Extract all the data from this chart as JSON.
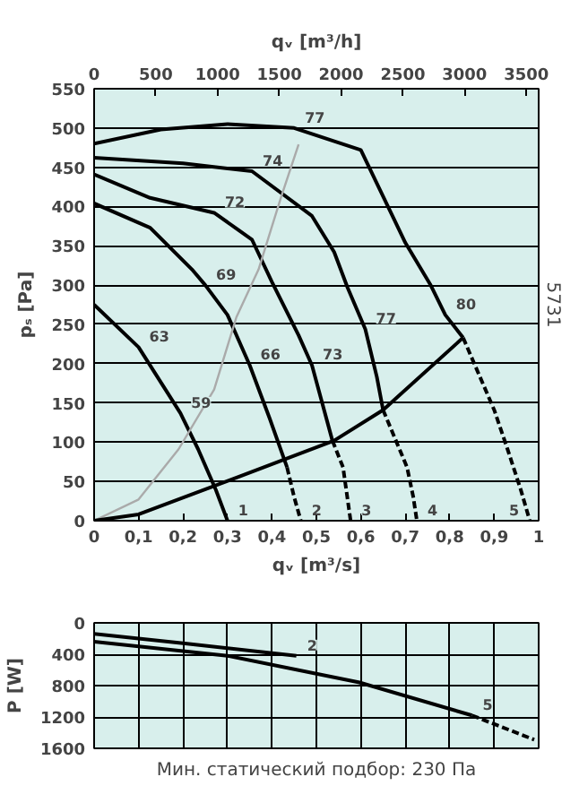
{
  "chart_data": [
    {
      "type": "line",
      "ylabel": "pₛ [Pa]",
      "xlabel": "qᵥ [m³/s]",
      "x2label": "qᵥ [m³/h]",
      "xlim": [
        0,
        1
      ],
      "xticks": [
        0,
        {
          "value": 0.1,
          "label": "0,1"
        },
        {
          "value": 0.2,
          "label": "0,2"
        },
        {
          "value": 0.3,
          "label": "0,3"
        },
        {
          "value": 0.4,
          "label": "0,4"
        },
        {
          "value": 0.5,
          "label": "0,5"
        },
        {
          "value": 0.6,
          "label": "0,6"
        },
        {
          "value": 0.7,
          "label": "0,7"
        },
        {
          "value": 0.8,
          "label": "0,8"
        },
        {
          "value": 0.9,
          "label": "0,9"
        },
        1
      ],
      "x2lim": [
        0,
        3600
      ],
      "x2ticks": [
        0,
        500,
        1000,
        1500,
        2000,
        2500,
        3000,
        3500
      ],
      "ylim": [
        0,
        550
      ],
      "yticks": [
        0,
        50,
        100,
        150,
        200,
        250,
        300,
        350,
        400,
        450,
        500,
        550
      ],
      "grid": true,
      "line_style": "solid",
      "series": [
        {
          "color": "#000000",
          "x": [
            0,
            0.1,
            0.194,
            0.234,
            0.274,
            0.3
          ],
          "values": [
            275,
            221,
            137,
            91,
            39,
            0
          ]
        },
        {
          "color": "#000000",
          "x": [
            0,
            0.126,
            0.22,
            0.25,
            0.3,
            0.35,
            0.395,
            0.434
          ],
          "values": [
            404,
            373,
            320,
            300,
            262,
            198,
            130,
            68
          ]
        },
        {
          "color": "#000000",
          "line_style": "dashed",
          "x": [
            0.434,
            0.45,
            0.465
          ],
          "values": [
            68,
            30,
            0
          ]
        },
        {
          "color": "#000000",
          "x": [
            0,
            0.126,
            0.27,
            0.355,
            0.4,
            0.46,
            0.49,
            0.536
          ],
          "values": [
            441,
            411,
            392,
            358,
            304,
            236,
            198,
            102
          ]
        },
        {
          "color": "#000000",
          "line_style": "dashed",
          "x": [
            0.536,
            0.56,
            0.577
          ],
          "values": [
            102,
            68,
            0
          ]
        },
        {
          "color": "#000000",
          "x": [
            0,
            0.2,
            0.355,
            0.49,
            0.54,
            0.57,
            0.61,
            0.636,
            0.65
          ],
          "values": [
            462,
            455,
            445,
            388,
            342,
            297,
            244,
            183,
            141
          ]
        },
        {
          "color": "#000000",
          "line_style": "dashed",
          "x": [
            0.65,
            0.704,
            0.718,
            0.726
          ],
          "values": [
            141,
            68,
            30,
            0
          ]
        },
        {
          "color": "#000000",
          "x": [
            0,
            0.15,
            0.3,
            0.45,
            0.6,
            0.7,
            0.756,
            0.79,
            0.83
          ],
          "values": [
            480,
            498,
            505,
            500,
            472,
            354,
            301,
            262,
            233
          ]
        },
        {
          "color": "#000000",
          "line_style": "dashed",
          "x": [
            0.83,
            0.9,
            0.93,
            0.96,
            0.98
          ],
          "values": [
            233,
            141,
            91,
            39,
            0
          ]
        },
        {
          "color": "#aaaaaa",
          "x": [
            0,
            0.1,
            0.19,
            0.27,
            0.32,
            0.37,
            0.42,
            0.46
          ],
          "values": [
            0,
            27,
            91,
            167,
            259,
            320,
            411,
            479
          ]
        },
        {
          "color": "#000000",
          "x": [
            0,
            0.1,
            0.33,
            0.54,
            0.65,
            0.83
          ],
          "values": [
            0,
            8,
            57,
            102,
            141,
            233
          ]
        }
      ],
      "annotations": [
        {
          "text": "77",
          "x": 0.45,
          "y": 500
        },
        {
          "text": "74",
          "x": 0.355,
          "y": 445
        },
        {
          "text": "72",
          "x": 0.27,
          "y": 392
        },
        {
          "text": "69",
          "x": 0.25,
          "y": 300
        },
        {
          "text": "63",
          "x": 0.1,
          "y": 221
        },
        {
          "text": "59",
          "x": 0.194,
          "y": 137
        },
        {
          "text": "66",
          "x": 0.35,
          "y": 198
        },
        {
          "text": "73",
          "x": 0.49,
          "y": 198
        },
        {
          "text": "77",
          "x": 0.61,
          "y": 244
        },
        {
          "text": "80",
          "x": 0.79,
          "y": 262
        },
        {
          "text": "1",
          "x": 0.3,
          "y": 0
        },
        {
          "text": "2",
          "x": 0.465,
          "y": 0
        },
        {
          "text": "3",
          "x": 0.577,
          "y": 0
        },
        {
          "text": "4",
          "x": 0.726,
          "y": 0
        },
        {
          "text": "5",
          "x": 0.98,
          "y": 0
        },
        "5731"
      ]
    },
    {
      "type": "line",
      "ylabel": "P [W]",
      "xlim": [
        0,
        1
      ],
      "xticks": [
        0,
        0.1,
        0.2,
        0.3,
        0.4,
        0.5,
        0.6,
        0.7,
        0.8,
        0.9,
        1
      ],
      "ylim": [
        1600,
        0
      ],
      "yticks": [
        0,
        400,
        800,
        1200,
        1600
      ],
      "tick_labels": "y",
      "grid": true,
      "line_style": "solid",
      "series": [
        {
          "color": "#000000",
          "x": [
            0,
            0.2,
            0.455
          ],
          "values": [
            140,
            260,
            420
          ]
        },
        {
          "color": "#000000",
          "x": [
            0,
            0.3,
            0.597,
            0.85
          ],
          "values": [
            240,
            420,
            760,
            1180
          ]
        },
        {
          "color": "#000000",
          "line_style": "dashed",
          "x": [
            0.85,
            0.99
          ],
          "values": [
            1180,
            1490
          ]
        }
      ],
      "annotations": [
        {
          "text": "2",
          "x": 0.455,
          "y": 420
        },
        {
          "text": "5",
          "x": 0.85,
          "y": 1180
        },
        "Мин. статический подбор: 230 Па"
      ]
    }
  ]
}
